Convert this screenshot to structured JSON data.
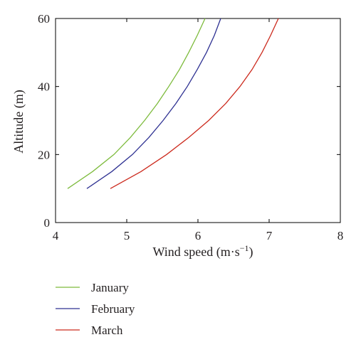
{
  "chart_data": {
    "type": "line",
    "title": "",
    "xlabel": "Wind speed (m·s",
    "xlabel_sup": "−1",
    "xlabel_suffix": ")",
    "ylabel": "Altitude (m)",
    "xlim": [
      4,
      8
    ],
    "ylim": [
      0,
      60
    ],
    "xticks": [
      4,
      5,
      6,
      7,
      8
    ],
    "yticks": [
      0,
      20,
      40,
      60
    ],
    "grid": false,
    "legend_position": "bottom-left-below-plot",
    "series": [
      {
        "name": "January",
        "color": "#7dbb3c",
        "points": [
          [
            4.17,
            10
          ],
          [
            4.52,
            15
          ],
          [
            4.82,
            20
          ],
          [
            5.05,
            25
          ],
          [
            5.25,
            30
          ],
          [
            5.43,
            35
          ],
          [
            5.59,
            40
          ],
          [
            5.74,
            45
          ],
          [
            5.87,
            50
          ],
          [
            5.99,
            55
          ],
          [
            6.1,
            60
          ]
        ]
      },
      {
        "name": "February",
        "color": "#2e3192",
        "points": [
          [
            4.44,
            10
          ],
          [
            4.79,
            15
          ],
          [
            5.08,
            20
          ],
          [
            5.31,
            25
          ],
          [
            5.51,
            30
          ],
          [
            5.69,
            35
          ],
          [
            5.85,
            40
          ],
          [
            5.99,
            45
          ],
          [
            6.12,
            50
          ],
          [
            6.23,
            55
          ],
          [
            6.32,
            60
          ]
        ]
      },
      {
        "name": "March",
        "color": "#cc2a1d",
        "points": [
          [
            4.77,
            10
          ],
          [
            5.2,
            15
          ],
          [
            5.56,
            20
          ],
          [
            5.87,
            25
          ],
          [
            6.15,
            30
          ],
          [
            6.39,
            35
          ],
          [
            6.59,
            40
          ],
          [
            6.76,
            45
          ],
          [
            6.9,
            50
          ],
          [
            7.02,
            55
          ],
          [
            7.13,
            60
          ]
        ]
      }
    ]
  }
}
